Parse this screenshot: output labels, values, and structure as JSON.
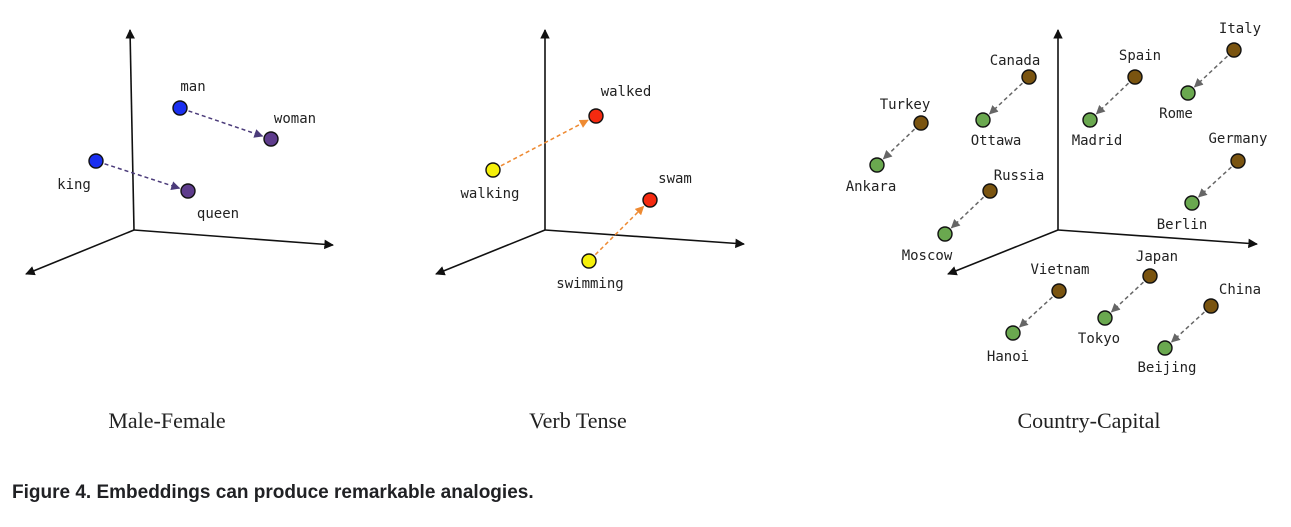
{
  "colors": {
    "axis": "#111111",
    "male_point": "#1a2ff0",
    "female_point": "#5e3c8c",
    "male_female_arrow": "#4b3b7a",
    "present_point": "#f5f00a",
    "past_point": "#f52a10",
    "tense_arrow": "#ee8a32",
    "country_point": "#7a5410",
    "capital_point": "#6aa84f",
    "country_capital_arrow": "#666666"
  },
  "panels": [
    {
      "id": "male-female",
      "label": "Male-Female",
      "points": [
        {
          "key": "man",
          "text": "man",
          "role": "male"
        },
        {
          "key": "woman",
          "text": "woman",
          "role": "female"
        },
        {
          "key": "king",
          "text": "king",
          "role": "male"
        },
        {
          "key": "queen",
          "text": "queen",
          "role": "female"
        }
      ],
      "arrows": [
        {
          "from": "man",
          "to": "woman",
          "color_key": "male_female_arrow"
        },
        {
          "from": "king",
          "to": "queen",
          "color_key": "male_female_arrow"
        }
      ]
    },
    {
      "id": "verb-tense",
      "label": "Verb Tense",
      "points": [
        {
          "key": "walking",
          "text": "walking",
          "role": "present"
        },
        {
          "key": "walked",
          "text": "walked",
          "role": "past"
        },
        {
          "key": "swimming",
          "text": "swimming",
          "role": "present"
        },
        {
          "key": "swam",
          "text": "swam",
          "role": "past"
        }
      ],
      "arrows": [
        {
          "from": "walking",
          "to": "walked",
          "color_key": "tense_arrow"
        },
        {
          "from": "swimming",
          "to": "swam",
          "color_key": "tense_arrow"
        }
      ]
    },
    {
      "id": "country-capital",
      "label": "Country-Capital",
      "points": [
        {
          "key": "canada",
          "text": "Canada",
          "role": "country"
        },
        {
          "key": "ottawa",
          "text": "Ottawa",
          "role": "capital"
        },
        {
          "key": "spain",
          "text": "Spain",
          "role": "country"
        },
        {
          "key": "madrid",
          "text": "Madrid",
          "role": "capital"
        },
        {
          "key": "italy",
          "text": "Italy",
          "role": "country"
        },
        {
          "key": "rome",
          "text": "Rome",
          "role": "capital"
        },
        {
          "key": "turkey",
          "text": "Turkey",
          "role": "country"
        },
        {
          "key": "ankara",
          "text": "Ankara",
          "role": "capital"
        },
        {
          "key": "germany",
          "text": "Germany",
          "role": "country"
        },
        {
          "key": "berlin",
          "text": "Berlin",
          "role": "capital"
        },
        {
          "key": "russia",
          "text": "Russia",
          "role": "country"
        },
        {
          "key": "moscow",
          "text": "Moscow",
          "role": "capital"
        },
        {
          "key": "vietnam",
          "text": "Vietnam",
          "role": "country"
        },
        {
          "key": "hanoi",
          "text": "Hanoi",
          "role": "capital"
        },
        {
          "key": "japan",
          "text": "Japan",
          "role": "country"
        },
        {
          "key": "tokyo",
          "text": "Tokyo",
          "role": "capital"
        },
        {
          "key": "china",
          "text": "China",
          "role": "country"
        },
        {
          "key": "beijing",
          "text": "Beijing",
          "role": "capital"
        }
      ],
      "arrows": [
        {
          "from": "canada",
          "to": "ottawa",
          "color_key": "country_capital_arrow"
        },
        {
          "from": "spain",
          "to": "madrid",
          "color_key": "country_capital_arrow"
        },
        {
          "from": "italy",
          "to": "rome",
          "color_key": "country_capital_arrow"
        },
        {
          "from": "turkey",
          "to": "ankara",
          "color_key": "country_capital_arrow"
        },
        {
          "from": "germany",
          "to": "berlin",
          "color_key": "country_capital_arrow"
        },
        {
          "from": "russia",
          "to": "moscow",
          "color_key": "country_capital_arrow"
        },
        {
          "from": "vietnam",
          "to": "hanoi",
          "color_key": "country_capital_arrow"
        },
        {
          "from": "japan",
          "to": "tokyo",
          "color_key": "country_capital_arrow"
        },
        {
          "from": "china",
          "to": "beijing",
          "color_key": "country_capital_arrow"
        }
      ]
    }
  ],
  "caption": "Figure 4. Embeddings can produce remarkable analogies."
}
